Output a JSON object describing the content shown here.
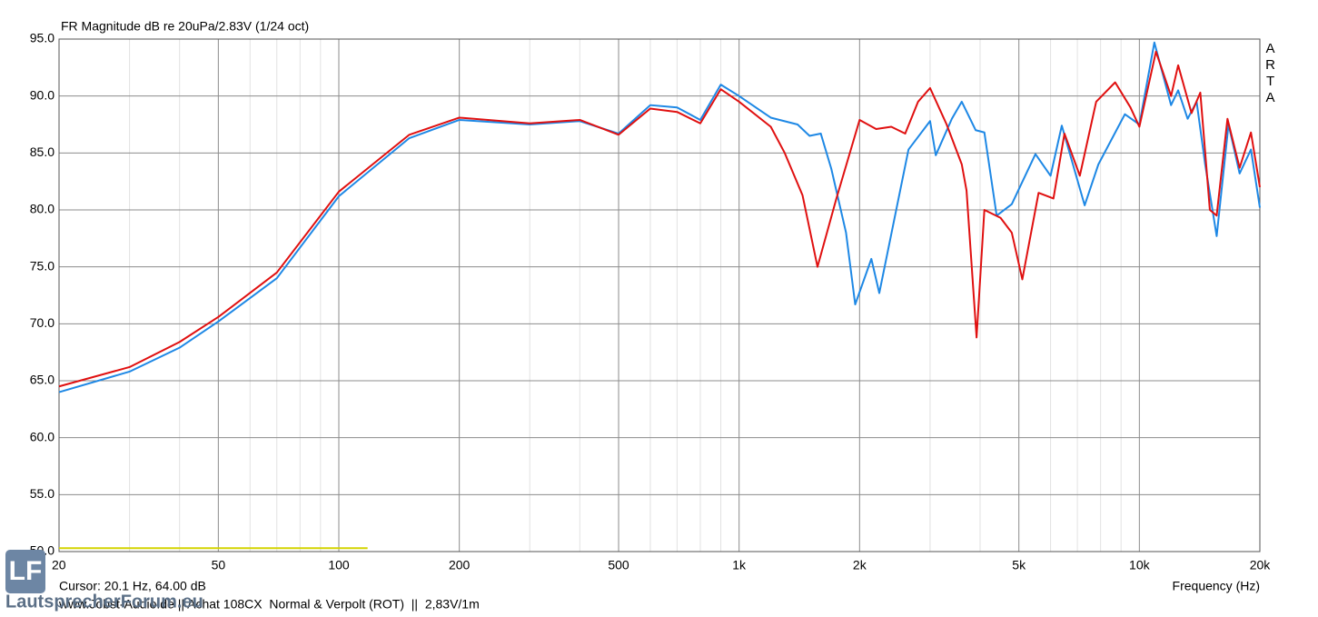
{
  "chart_data": {
    "type": "line",
    "title": "FR Magnitude dB re 20uPa/2.83V (1/24 oct)",
    "side_label": "ARTA",
    "xlabel": "Frequency (Hz)",
    "cursor_text": "Cursor: 20.1 Hz, 64.00 dB",
    "footer": "www.Jobst-Audio.de || Achat 108CX  Normal & Verpolt (ROT)  ||  2,83V/1m",
    "xscale": "log",
    "grid": true,
    "xlim": [
      20,
      20000
    ],
    "ylim": [
      50,
      95
    ],
    "xticks": [
      20,
      50,
      100,
      200,
      500,
      {
        "value": 1000,
        "label": "1k"
      },
      {
        "value": 2000,
        "label": "2k"
      },
      {
        "value": 5000,
        "label": "5k"
      },
      {
        "value": 10000,
        "label": "10k"
      },
      {
        "value": 20000,
        "label": "20k"
      }
    ],
    "minor_xgrid": [
      30,
      40,
      60,
      70,
      80,
      90,
      300,
      400,
      600,
      700,
      800,
      900,
      3000,
      4000,
      6000,
      7000,
      8000,
      9000
    ],
    "yticks": [
      {
        "value": 50,
        "label": "50.0"
      },
      {
        "value": 55,
        "label": "55.0"
      },
      {
        "value": 60,
        "label": "60.0"
      },
      {
        "value": 65,
        "label": "65.0"
      },
      {
        "value": 70,
        "label": "70.0"
      },
      {
        "value": 75,
        "label": "75.0"
      },
      {
        "value": 80,
        "label": "80.0"
      },
      {
        "value": 85,
        "label": "85.0"
      },
      {
        "value": 90,
        "label": "90.0"
      },
      {
        "value": 95,
        "label": "95.0"
      }
    ],
    "series": [
      {
        "color": "#d4d400",
        "x": [
          20,
          118
        ],
        "values": [
          50.3,
          50.3
        ]
      },
      {
        "color": "#1e88e5",
        "x": [
          20,
          30,
          40,
          50,
          70,
          100,
          150,
          200,
          300,
          400,
          500,
          600,
          700,
          800,
          900,
          1000,
          1200,
          1400,
          1500,
          1600,
          1700,
          1850,
          1950,
          2140,
          2240,
          2650,
          3000,
          3100,
          3400,
          3600,
          3900,
          4100,
          4400,
          4800,
          5500,
          6000,
          6400,
          7300,
          7900,
          9200,
          10000,
          10900,
          12000,
          12500,
          13200,
          13900,
          14600,
          15600,
          16700,
          17800,
          19000,
          20000
        ],
        "values": [
          64.0,
          65.8,
          67.9,
          70.2,
          74.0,
          81.2,
          86.3,
          87.9,
          87.5,
          87.8,
          86.7,
          89.2,
          89.0,
          87.9,
          91.0,
          90.0,
          88.1,
          87.5,
          86.5,
          86.7,
          83.6,
          78.0,
          71.7,
          75.7,
          72.7,
          85.3,
          87.8,
          84.8,
          88.0,
          89.5,
          87.0,
          86.8,
          79.5,
          80.5,
          84.9,
          83.0,
          87.4,
          80.4,
          84.0,
          88.4,
          87.5,
          94.7,
          89.2,
          90.5,
          88.0,
          89.5,
          84.0,
          77.7,
          87.5,
          83.2,
          85.3,
          80.2
        ]
      },
      {
        "color": "#e01010",
        "x": [
          20,
          30,
          40,
          50,
          70,
          100,
          150,
          200,
          300,
          400,
          500,
          600,
          700,
          800,
          900,
          1000,
          1200,
          1300,
          1440,
          1570,
          1750,
          2000,
          2200,
          2400,
          2600,
          2800,
          3000,
          3300,
          3600,
          3700,
          3920,
          4100,
          4500,
          4800,
          5100,
          5600,
          6100,
          6500,
          7100,
          7800,
          8700,
          9500,
          10000,
          11000,
          12000,
          12500,
          13500,
          14200,
          15000,
          15600,
          16600,
          17800,
          19000,
          20000
        ],
        "values": [
          64.5,
          66.2,
          68.4,
          70.6,
          74.5,
          81.6,
          86.6,
          88.1,
          87.6,
          87.9,
          86.6,
          88.9,
          88.6,
          87.6,
          90.6,
          89.5,
          87.3,
          85.0,
          81.3,
          75.0,
          81.0,
          87.9,
          87.1,
          87.3,
          86.7,
          89.5,
          90.7,
          87.5,
          84.0,
          81.7,
          68.8,
          80.0,
          79.3,
          78.0,
          73.9,
          81.5,
          81.0,
          86.7,
          83.0,
          89.5,
          91.2,
          89.0,
          87.3,
          93.9,
          90.0,
          92.7,
          88.5,
          90.3,
          80.0,
          79.5,
          88.0,
          83.7,
          86.8,
          82.0
        ]
      }
    ]
  },
  "watermark": {
    "logo": "LF",
    "text": "LautsprecherForum.eu"
  }
}
